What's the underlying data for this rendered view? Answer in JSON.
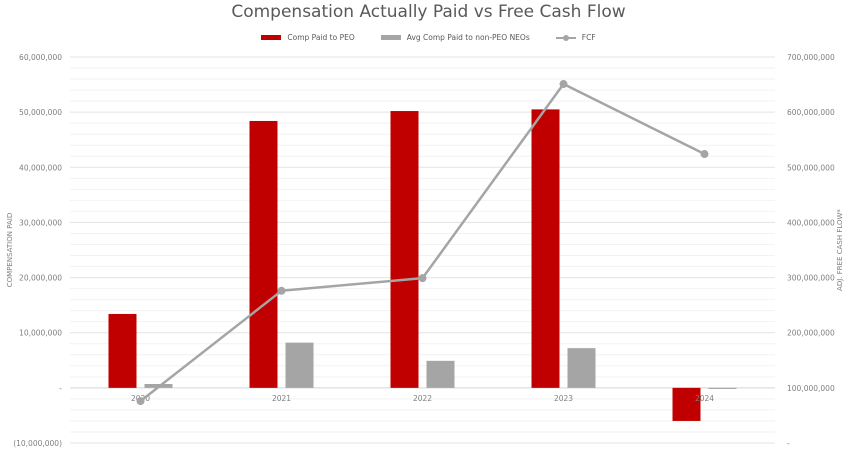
{
  "chart_data": {
    "type": "bar",
    "title": "Compensation Actually Paid vs Free Cash Flow",
    "categories": [
      "2020",
      "2021",
      "2022",
      "2023",
      "2024"
    ],
    "series": [
      {
        "name": "Comp Paid to PEO",
        "type": "bar",
        "axis": "left",
        "color": "#c00000",
        "values": [
          13400000,
          48400000,
          50200000,
          50500000,
          -6000000
        ]
      },
      {
        "name": "Avg Comp Paid to non-PEO NEOs",
        "type": "bar",
        "axis": "left",
        "color": "#a5a5a5",
        "values": [
          700000,
          8200000,
          4900000,
          7200000,
          -200000
        ]
      },
      {
        "name": "FCF",
        "type": "line",
        "axis": "right",
        "color": "#a5a5a5",
        "values": [
          76000000,
          276000000,
          299000000,
          651000000,
          524000000
        ]
      }
    ],
    "ylabel": "COMPENSATION PAID",
    "y2label": "ADJ. FREE CASH FLOW*",
    "xlabel": "",
    "ylim": [
      -10000000,
      60000000
    ],
    "y2lim": [
      0,
      700000000
    ],
    "yticks": [
      "60,000,000",
      "50,000,000",
      "40,000,000",
      "30,000,000",
      "20,000,000",
      "10,000,000",
      "-",
      "(10,000,000)"
    ],
    "y2ticks": [
      "700,000,000",
      "600,000,000",
      "500,000,000",
      "400,000,000",
      "300,000,000",
      "200,000,000",
      "100,000,000",
      "-"
    ],
    "grid": true,
    "legend_position": "top"
  },
  "legend": [
    {
      "label": "Comp Paid to PEO",
      "color": "#c00000",
      "kind": "bar"
    },
    {
      "label": "Avg Comp Paid to non-PEO NEOs",
      "color": "#a5a5a5",
      "kind": "bar"
    },
    {
      "label": "FCF",
      "color": "#a5a5a5",
      "kind": "line"
    }
  ]
}
